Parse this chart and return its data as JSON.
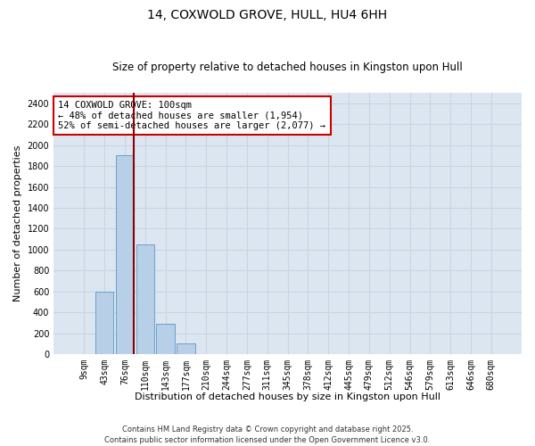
{
  "title": "14, COXWOLD GROVE, HULL, HU4 6HH",
  "subtitle": "Size of property relative to detached houses in Kingston upon Hull",
  "xlabel": "Distribution of detached houses by size in Kingston upon Hull",
  "ylabel": "Number of detached properties",
  "categories": [
    "9sqm",
    "43sqm",
    "76sqm",
    "110sqm",
    "143sqm",
    "177sqm",
    "210sqm",
    "244sqm",
    "277sqm",
    "311sqm",
    "345sqm",
    "378sqm",
    "412sqm",
    "445sqm",
    "479sqm",
    "512sqm",
    "546sqm",
    "579sqm",
    "613sqm",
    "646sqm",
    "680sqm"
  ],
  "values": [
    0,
    600,
    1900,
    1050,
    290,
    100,
    0,
    0,
    0,
    0,
    0,
    0,
    0,
    0,
    0,
    0,
    0,
    0,
    0,
    0,
    0
  ],
  "bar_color": "#b8cfe8",
  "bar_edgecolor": "#6aa0cc",
  "red_line_x": 2.45,
  "highlight_color": "#8b0000",
  "annotation_text": "14 COXWOLD GROVE: 100sqm\n← 48% of detached houses are smaller (1,954)\n52% of semi-detached houses are larger (2,077) →",
  "annotation_box_facecolor": "#ffffff",
  "annotation_box_edgecolor": "#cc0000",
  "ylim": [
    0,
    2500
  ],
  "yticks": [
    0,
    200,
    400,
    600,
    800,
    1000,
    1200,
    1400,
    1600,
    1800,
    2000,
    2200,
    2400
  ],
  "grid_color": "#c8d4e8",
  "bg_color": "#dce6f0",
  "footer": "Contains HM Land Registry data © Crown copyright and database right 2025.\nContains public sector information licensed under the Open Government Licence v3.0.",
  "title_fontsize": 10,
  "subtitle_fontsize": 8.5,
  "tick_fontsize": 7,
  "ylabel_fontsize": 8,
  "xlabel_fontsize": 8,
  "annotation_fontsize": 7.5
}
